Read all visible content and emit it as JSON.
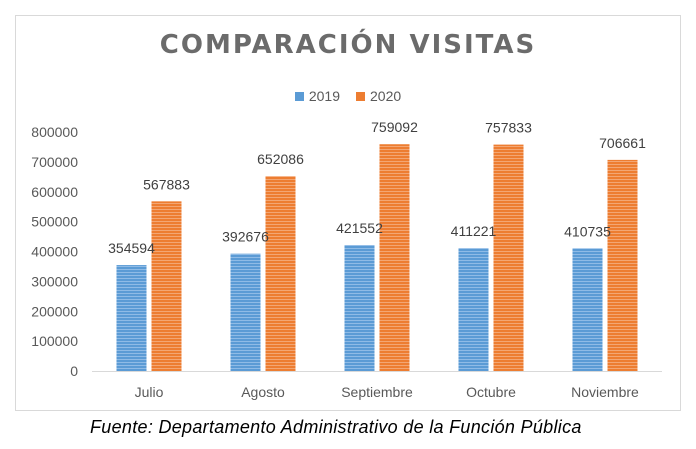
{
  "chart_data": {
    "type": "bar",
    "title": "COMPARACIÓN VISITAS",
    "categories": [
      "Julio",
      "Agosto",
      "Septiembre",
      "Octubre",
      "Noviembre"
    ],
    "series": [
      {
        "name": "2019",
        "color": "#5b9bd5",
        "values": [
          354594,
          392676,
          421552,
          411221,
          410735
        ]
      },
      {
        "name": "2020",
        "color": "#ed7d31",
        "values": [
          567883,
          652086,
          759092,
          757833,
          706661
        ]
      }
    ],
    "yticks": [
      "0",
      "100000",
      "200000",
      "300000",
      "400000",
      "500000",
      "600000",
      "700000",
      "800000"
    ],
    "ylim": [
      0,
      800000
    ],
    "xlabel": "",
    "ylabel": "",
    "legend_position": "top"
  },
  "source": "Fuente: Departamento Administrativo  de la Función Pública"
}
